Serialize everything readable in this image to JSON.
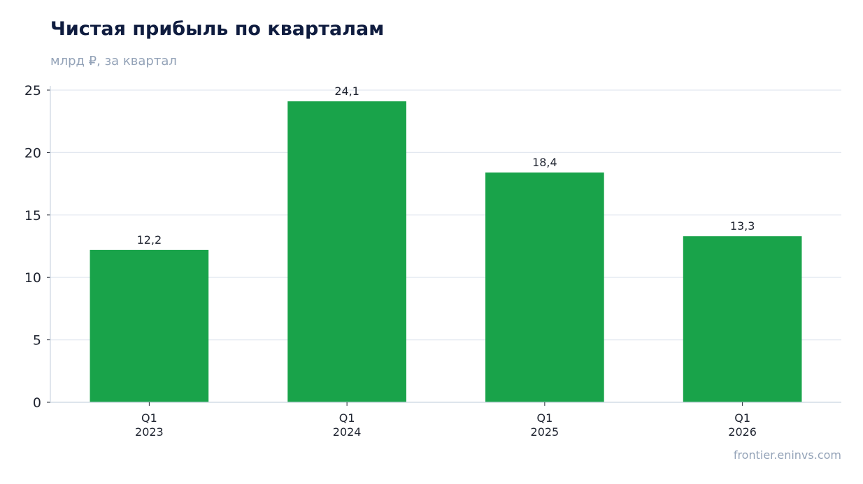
{
  "header": {
    "title": "Чистая прибыль по кварталам",
    "subtitle": "млрд ₽, за квартал"
  },
  "footer": {
    "source": "frontier.eninvs.com"
  },
  "colors": {
    "bar": "#19a34a",
    "grid": "#e2e8f0",
    "axis": "#cbd5e1",
    "title": "#0f1c3f",
    "muted": "#94a3b8",
    "text": "#1f2430"
  },
  "chart_data": {
    "type": "bar",
    "title": "Чистая прибыль по кварталам",
    "subtitle": "млрд ₽, за квартал",
    "categories": [
      [
        "Q1",
        "2023"
      ],
      [
        "Q1",
        "2024"
      ],
      [
        "Q1",
        "2025"
      ],
      [
        "Q1",
        "2026"
      ]
    ],
    "values": [
      12.2,
      24.1,
      18.4,
      13.3
    ],
    "data_labels": [
      "12,2",
      "24,1",
      "18,4",
      "13,3"
    ],
    "ylim": [
      0,
      25
    ],
    "yticks": [
      0,
      5,
      10,
      15,
      20,
      25
    ],
    "grid": true,
    "legend": "none"
  }
}
